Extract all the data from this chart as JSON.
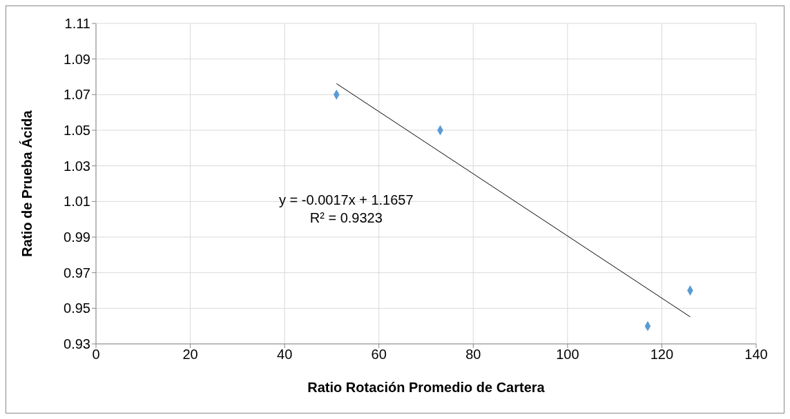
{
  "chart_data": {
    "type": "scatter",
    "xlabel": "Ratio Rotación Promedio de Cartera",
    "ylabel": "Ratio de Prueba Ácida",
    "series": [
      {
        "color": "#5b9bd5",
        "x": [
          51,
          73,
          117,
          126
        ],
        "values": [
          1.07,
          1.05,
          0.94,
          0.96
        ],
        "marker": "diamond"
      },
      {
        "type": "line",
        "color": "#000000",
        "x": [
          51,
          126
        ],
        "values": [
          1.0762,
          0.9452
        ]
      }
    ],
    "annotations": [
      "y = -0.0017x + 1.1657",
      "R² = 0.9323"
    ],
    "xlim": [
      0,
      140
    ],
    "xticks": [
      0,
      20,
      40,
      60,
      80,
      100,
      120,
      140
    ],
    "ylim": [
      0.93,
      1.11
    ],
    "yticks": [
      {
        "value": 0.93,
        "label": "0.93"
      },
      {
        "value": 0.95,
        "label": "0.95"
      },
      {
        "value": 0.97,
        "label": "0.97"
      },
      {
        "value": 0.99,
        "label": "0.99"
      },
      {
        "value": 1.01,
        "label": "1.01"
      },
      {
        "value": 1.03,
        "label": "1.03"
      },
      {
        "value": 1.05,
        "label": "1.05"
      },
      {
        "value": 1.07,
        "label": "1.07"
      },
      {
        "value": 1.09,
        "label": "1.09"
      },
      {
        "value": 1.11,
        "label": "1.11"
      }
    ],
    "grid": true
  }
}
